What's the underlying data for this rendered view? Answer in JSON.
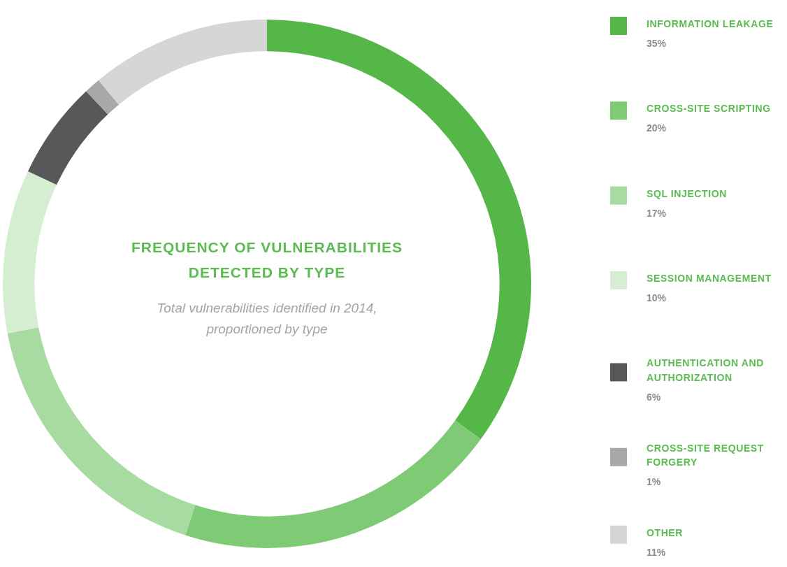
{
  "chart_data": {
    "type": "donut",
    "title": "FREQUENCY OF VULNERABILITIES DETECTED BY TYPE",
    "subtitle": "Total vulnerabilities identified in 2014, proportioned by type",
    "categories": [
      "INFORMATION LEAKAGE",
      "CROSS-SITE SCRIPTING",
      "SQL INJECTION",
      "SESSION MANAGEMENT",
      "AUTHENTICATION AND AUTHORIZATION",
      "CROSS-SITE REQUEST FORGERY",
      "OTHER"
    ],
    "values": [
      35,
      20,
      17,
      10,
      6,
      1,
      11
    ],
    "value_labels": [
      "35%",
      "20%",
      "17%",
      "10%",
      "6%",
      "1%",
      "11%"
    ],
    "colors": [
      "#55b748",
      "#7fcb75",
      "#a8dba1",
      "#d5eed1",
      "#58585a",
      "#a8a8aa",
      "#d6d6d6"
    ],
    "legend": "right"
  }
}
